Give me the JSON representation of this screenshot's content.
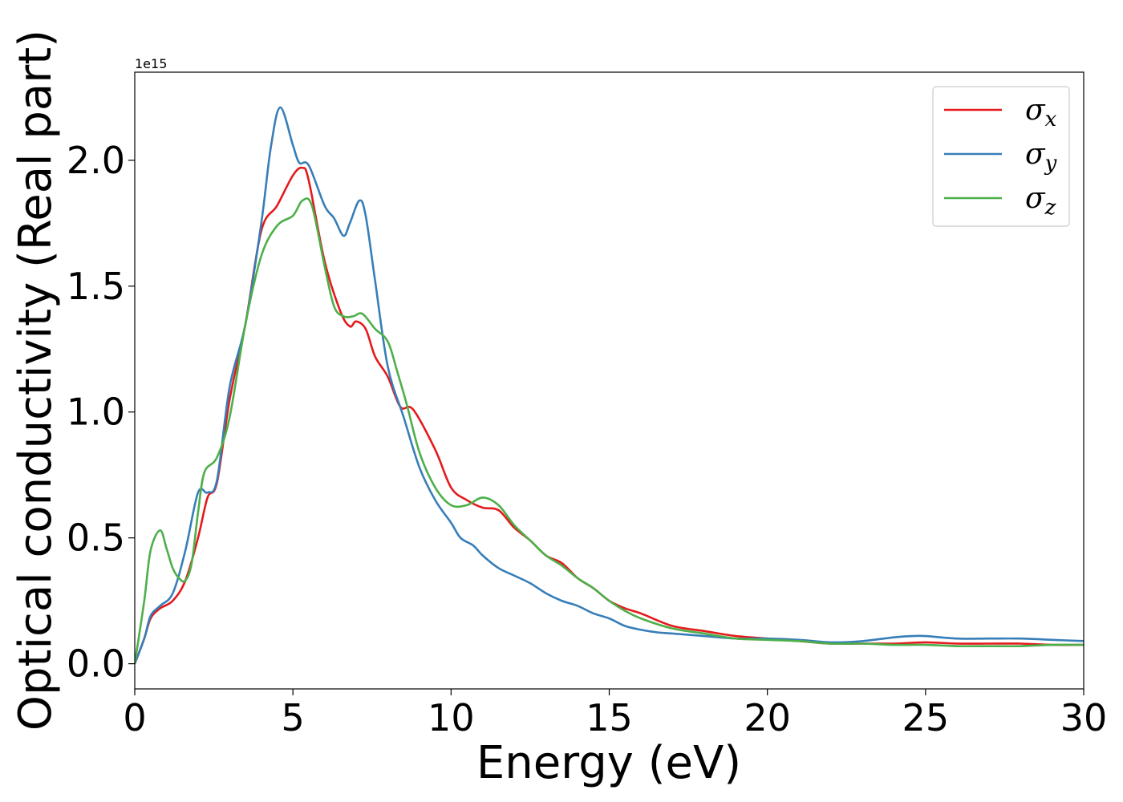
{
  "chart_data": {
    "type": "line",
    "title": "",
    "xlabel": "Energy (eV)",
    "ylabel": "Optical conductivity (Real part)",
    "y_offset_text": "1e15",
    "xlim": [
      0,
      30
    ],
    "ylim": [
      -0.1,
      2.35
    ],
    "xticks": [
      0,
      5,
      10,
      15,
      20,
      25,
      30
    ],
    "xtick_labels": [
      "0",
      "5",
      "10",
      "15",
      "20",
      "25",
      "30"
    ],
    "yticks": [
      0.0,
      0.5,
      1.0,
      1.5,
      2.0
    ],
    "ytick_labels": [
      "0.0",
      "0.5",
      "1.0",
      "1.5",
      "2.0"
    ],
    "grid": false,
    "legend_position": "top-right",
    "series": [
      {
        "name": "σx",
        "label_base": "σ",
        "label_sub": "x",
        "color": "#e41a1c",
        "x": [
          0,
          0.3,
          0.5,
          0.8,
          1.2,
          1.6,
          2.0,
          2.3,
          2.6,
          3.0,
          3.5,
          4.0,
          4.5,
          5.0,
          5.3,
          5.5,
          6.0,
          6.5,
          6.8,
          7.0,
          7.3,
          7.6,
          8.0,
          8.4,
          8.8,
          9.5,
          10.0,
          10.5,
          11.0,
          11.5,
          12.0,
          12.5,
          13.0,
          13.5,
          14.0,
          14.5,
          15.0,
          15.5,
          16.0,
          17.0,
          18.0,
          19.0,
          20.0,
          21.0,
          22.0,
          23.0,
          24.0,
          25.0,
          26.0,
          27.0,
          28.0,
          29.0,
          30.0
        ],
        "y": [
          0.0,
          0.1,
          0.18,
          0.22,
          0.25,
          0.33,
          0.5,
          0.66,
          0.72,
          1.05,
          1.35,
          1.72,
          1.82,
          1.94,
          1.97,
          1.92,
          1.6,
          1.4,
          1.34,
          1.36,
          1.33,
          1.22,
          1.14,
          1.02,
          1.01,
          0.85,
          0.7,
          0.65,
          0.62,
          0.61,
          0.54,
          0.49,
          0.43,
          0.4,
          0.34,
          0.3,
          0.25,
          0.22,
          0.2,
          0.15,
          0.13,
          0.11,
          0.1,
          0.09,
          0.08,
          0.08,
          0.08,
          0.085,
          0.08,
          0.08,
          0.08,
          0.075,
          0.075
        ]
      },
      {
        "name": "σy",
        "label_base": "σ",
        "label_sub": "y",
        "color": "#377eb8",
        "x": [
          0,
          0.3,
          0.5,
          0.8,
          1.2,
          1.6,
          2.0,
          2.3,
          2.6,
          3.0,
          3.5,
          4.0,
          4.3,
          4.6,
          5.0,
          5.2,
          5.5,
          6.0,
          6.3,
          6.6,
          6.8,
          7.1,
          7.3,
          7.6,
          8.0,
          8.5,
          9.0,
          9.5,
          10.0,
          10.3,
          10.7,
          11.0,
          11.5,
          12.0,
          12.5,
          13.0,
          13.5,
          14.0,
          14.5,
          15.0,
          15.5,
          16.0,
          16.5,
          17.0,
          18.0,
          19.0,
          20.0,
          21.0,
          22.0,
          23.0,
          24.0,
          24.6,
          25.0,
          26.0,
          27.0,
          28.0,
          29.0,
          30.0
        ],
        "y": [
          0.0,
          0.1,
          0.19,
          0.23,
          0.28,
          0.45,
          0.68,
          0.68,
          0.73,
          1.1,
          1.35,
          1.75,
          2.05,
          2.21,
          2.06,
          1.99,
          1.98,
          1.82,
          1.77,
          1.7,
          1.75,
          1.84,
          1.78,
          1.52,
          1.18,
          0.98,
          0.78,
          0.65,
          0.56,
          0.5,
          0.47,
          0.43,
          0.38,
          0.35,
          0.32,
          0.28,
          0.25,
          0.23,
          0.2,
          0.18,
          0.15,
          0.135,
          0.125,
          0.12,
          0.11,
          0.1,
          0.1,
          0.095,
          0.085,
          0.09,
          0.105,
          0.11,
          0.11,
          0.1,
          0.1,
          0.1,
          0.095,
          0.09
        ]
      },
      {
        "name": "σz",
        "label_base": "σ",
        "label_sub": "z",
        "color": "#4daf4a",
        "x": [
          0,
          0.3,
          0.5,
          0.8,
          1.0,
          1.2,
          1.4,
          1.6,
          1.8,
          2.0,
          2.2,
          2.6,
          3.0,
          3.5,
          4.0,
          4.5,
          5.0,
          5.3,
          5.6,
          6.0,
          6.3,
          6.6,
          6.9,
          7.2,
          7.6,
          8.0,
          8.3,
          8.6,
          9.0,
          9.5,
          10.0,
          10.5,
          11.0,
          11.5,
          12.0,
          12.5,
          13.0,
          13.5,
          14.0,
          14.5,
          15.0,
          15.5,
          16.0,
          17.0,
          18.0,
          19.0,
          20.0,
          21.0,
          22.0,
          23.0,
          24.0,
          25.0,
          26.0,
          27.0,
          28.0,
          29.0,
          30.0
        ],
        "y": [
          0.0,
          0.25,
          0.45,
          0.53,
          0.46,
          0.38,
          0.34,
          0.33,
          0.4,
          0.6,
          0.76,
          0.82,
          0.98,
          1.35,
          1.62,
          1.74,
          1.78,
          1.84,
          1.82,
          1.58,
          1.42,
          1.38,
          1.38,
          1.39,
          1.33,
          1.28,
          1.16,
          1.03,
          0.84,
          0.7,
          0.63,
          0.63,
          0.66,
          0.63,
          0.55,
          0.49,
          0.43,
          0.39,
          0.34,
          0.3,
          0.25,
          0.21,
          0.18,
          0.14,
          0.12,
          0.1,
          0.095,
          0.09,
          0.08,
          0.08,
          0.075,
          0.075,
          0.07,
          0.07,
          0.07,
          0.075,
          0.075
        ]
      }
    ]
  }
}
